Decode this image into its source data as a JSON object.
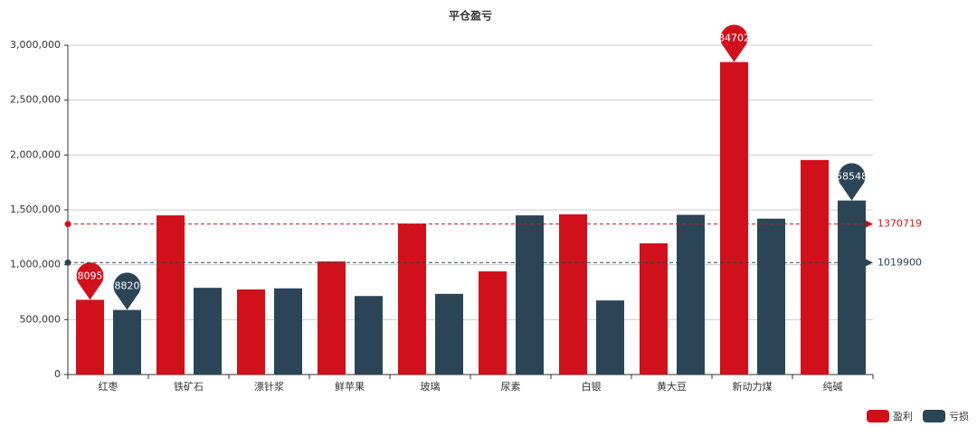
{
  "chart_data": {
    "type": "bar",
    "title": "平仓盈亏",
    "categories": [
      "红枣",
      "铁矿石",
      "漂针浆",
      "鲜苹果",
      "玻璃",
      "尿素",
      "白银",
      "黄大豆",
      "新动力煤",
      "纯碱"
    ],
    "series": [
      {
        "name": "盈利",
        "color": "#d0111b",
        "values": [
          680950,
          1450000,
          775000,
          1030000,
          1375000,
          940000,
          1460000,
          1195000,
          2847020,
          1954220
        ],
        "average": 1370719
      },
      {
        "name": "亏损",
        "color": "#2c4556",
        "values": [
          588200,
          790000,
          785000,
          715320,
          735000,
          1450000,
          675000,
          1455000,
          1420000,
          1585480
        ],
        "average": 1019900
      }
    ],
    "ylim": [
      0,
      3000000
    ],
    "yticks": [
      0,
      {
        "value": 500000,
        "label": "500,000"
      },
      {
        "value": 1000000,
        "label": "1,000,000"
      },
      {
        "value": 1500000,
        "label": "1,500,000"
      },
      {
        "value": 2000000,
        "label": "2,000,000"
      },
      {
        "value": 2500000,
        "label": "2,500,000"
      },
      {
        "value": 3000000,
        "label": "3,000,000"
      }
    ],
    "grid": true,
    "legend": "bottom-right"
  }
}
